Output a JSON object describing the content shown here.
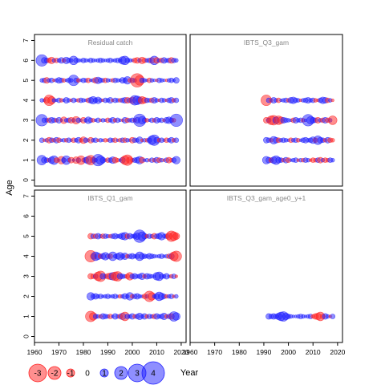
{
  "colors": {
    "negative": "#ff2020",
    "positive": "#2020ff",
    "panel_title": "#888888",
    "axis": "#000000"
  },
  "chart_data": {
    "type": "scatter",
    "subtype": "bubble-residual-panels",
    "xlabel": "Year",
    "ylabel": "Age",
    "xlim": [
      1960,
      2022
    ],
    "ylim": [
      -0.3,
      7.3
    ],
    "x_ticks": [
      1960,
      1970,
      1980,
      1990,
      2000,
      2010,
      2020
    ],
    "y_ticks": [
      0,
      1,
      2,
      3,
      4,
      5,
      6,
      7
    ],
    "legend": {
      "placement": "bottom-left",
      "values": [
        -3,
        -2,
        -1,
        0,
        1,
        2,
        3,
        4
      ],
      "labels": [
        "-3",
        "-2",
        "-1",
        "0",
        "1",
        "2",
        "3",
        "4"
      ]
    },
    "panels": [
      {
        "title": "Residual catch",
        "year_range": [
          1963,
          2018
        ],
        "ages": [
          1,
          2,
          3,
          4,
          5,
          6
        ],
        "residuals": {
          "1": [
            1.0,
            0.6,
            0.5,
            -0.4,
            0.7,
            0.9,
            -0.5,
            0.3,
            -0.8,
            0.5,
            0.9,
            0.4,
            -0.6,
            0.3,
            -0.7,
            0.5,
            -0.9,
            -0.4,
            0.6,
            0.8,
            -1.0,
            -0.6,
            0.4,
            1.2,
            0.9,
            0.6,
            0.3,
            -0.5,
            0.5,
            0.7,
            -0.6,
            -0.4,
            0.3,
            0.6,
            -0.9,
            -1.1,
            -0.7,
            -0.4,
            0.5,
            0.6,
            0.8,
            -0.6,
            0.3,
            0.4,
            -0.3,
            0.5,
            -0.4,
            0.6,
            -0.5,
            0.4,
            -0.3,
            0.5,
            -0.6,
            -0.4,
            0.5,
            0.8
          ],
          "2": [
            0.5,
            -0.3,
            0.4,
            -0.6,
            0.5,
            -0.4,
            0.6,
            -0.5,
            0.3,
            0.4,
            -0.4,
            0.5,
            0.3,
            -0.5,
            0.4,
            0.6,
            -0.4,
            -0.7,
            0.5,
            0.3,
            -0.6,
            0.4,
            0.5,
            -0.3,
            0.4,
            0.3,
            -0.4,
            -0.3,
            0.5,
            0.4,
            -0.5,
            0.3,
            -0.4,
            0.5,
            -0.5,
            0.4,
            0.3,
            -0.6,
            0.5,
            0.4,
            0.7,
            -0.3,
            0.4,
            -0.4,
            0.5,
            0.9,
            1.1,
            0.6,
            -0.4,
            0.5,
            0.3,
            -0.5,
            0.4,
            0.6,
            -0.4,
            0.5
          ],
          "3": [
            1.2,
            0.5,
            0.4,
            -0.5,
            0.6,
            0.5,
            -0.4,
            0.6,
            0.3,
            -0.7,
            0.4,
            0.5,
            -0.6,
            0.4,
            -0.8,
            0.5,
            0.3,
            -0.6,
            0.4,
            0.7,
            0.5,
            -0.4,
            0.3,
            0.5,
            -0.3,
            0.4,
            0.3,
            -0.5,
            0.4,
            0.6,
            -0.4,
            0.5,
            0.3,
            -0.3,
            0.6,
            -0.5,
            0.4,
            0.5,
            -0.4,
            0.6,
            1.3,
            0.8,
            0.5,
            -0.4,
            0.3,
            0.5,
            -0.4,
            0.6,
            0.4,
            0.5,
            -0.3,
            0.6,
            0.7,
            0.5,
            -0.4,
            1.3
          ],
          "4": [
            0.4,
            0.3,
            -0.6,
            -1.1,
            -0.8,
            0.4,
            0.3,
            0.5,
            -0.4,
            0.3,
            0.6,
            0.4,
            -0.3,
            0.5,
            0.3,
            -0.4,
            0.5,
            0.4,
            0.3,
            -0.5,
            0.6,
            0.8,
            0.5,
            0.7,
            0.4,
            -0.3,
            0.5,
            0.4,
            0.6,
            -0.3,
            0.5,
            0.4,
            -0.4,
            0.5,
            0.6,
            -0.6,
            0.5,
            -0.7,
            1.0,
            0.9,
            0.7,
            -0.8,
            -0.6,
            0.5,
            0.4,
            -0.5,
            0.6,
            0.4,
            -0.3,
            0.5,
            0.4,
            -0.3,
            0.5,
            0.6,
            -0.4,
            0.5
          ],
          "5": [
            0.4,
            0.5,
            -0.6,
            0.4,
            0.5,
            -0.3,
            0.4,
            0.6,
            0.5,
            -0.4,
            0.3,
            0.5,
            0.4,
            1.1,
            0.5,
            -0.4,
            0.3,
            0.5,
            0.4,
            -0.5,
            0.3,
            0.4,
            -0.6,
            0.7,
            0.5,
            0.4,
            -0.5,
            0.4,
            0.3,
            -0.4,
            0.5,
            0.4,
            0.3,
            0.6,
            0.5,
            0.8,
            -0.4,
            0.5,
            0.4,
            -1.4,
            -1.0,
            0.5,
            0.4,
            0.3,
            -0.5,
            0.4,
            0.3,
            -0.3,
            0.5,
            0.4,
            0.3,
            -0.3,
            0.4,
            0.5,
            0.3,
            0.6
          ],
          "6": [
            1.2,
            0.6,
            0.5,
            -0.5,
            -0.7,
            0.4,
            -0.5,
            0.4,
            0.6,
            -0.4,
            0.7,
            0.5,
            0.4,
            0.9,
            0.5,
            0.4,
            0.3,
            0.5,
            0.4,
            0.3,
            0.5,
            0.4,
            0.3,
            0.4,
            0.5,
            0.4,
            0.3,
            0.4,
            0.5,
            0.3,
            0.4,
            0.5,
            0.4,
            0.8,
            0.9,
            0.5,
            0.4,
            0.3,
            -0.5,
            -0.6,
            0.4,
            -0.7,
            -0.5,
            0.4,
            0.5,
            -0.6,
            0.9,
            -0.6,
            0.4,
            -0.5,
            0.6,
            0.4,
            0.5,
            -0.6,
            0.5,
            0.4
          ]
        }
      },
      {
        "title": "IBTS_Q3_gam",
        "year_range": [
          1991,
          2018
        ],
        "ages": [
          1,
          2,
          3,
          4
        ],
        "residuals": {
          "1": [
            0.8,
            0.6,
            -0.5,
            0.7,
            0.9,
            0.6,
            0.5,
            -0.4,
            0.6,
            -0.5,
            0.3,
            0.4,
            0.5,
            -0.3,
            0.4,
            -0.4,
            0.5,
            0.4,
            -0.3,
            -0.5,
            -0.4,
            0.5,
            -0.6,
            0.4,
            -0.5,
            -0.4,
            0.5,
            0.4
          ],
          "2": [
            0.6,
            0.5,
            -0.4,
            0.8,
            0.6,
            -0.5,
            0.4,
            0.5,
            0.4,
            0.3,
            -0.5,
            0.4,
            0.5,
            -0.4,
            0.3,
            0.5,
            0.6,
            0.4,
            0.5,
            0.7,
            -0.5,
            0.9,
            0.6,
            0.5,
            -0.4,
            0.6,
            -0.5,
            -0.4
          ],
          "3": [
            -0.6,
            0.5,
            -0.9,
            -1.0,
            0.7,
            -0.9,
            -0.7,
            0.6,
            0.5,
            0.4,
            0.3,
            -0.5,
            0.6,
            0.4,
            0.5,
            -0.4,
            0.3,
            1.2,
            0.8,
            0.6,
            0.5,
            -0.6,
            0.4,
            -0.5,
            0.6,
            -0.5,
            0.4,
            -0.9
          ],
          "4": [
            -1.1,
            0.5,
            -0.4,
            0.6,
            0.4,
            -0.5,
            0.3,
            0.4,
            0.5,
            -0.4,
            0.6,
            0.7,
            0.5,
            0.4,
            -0.3,
            0.4,
            0.5,
            0.6,
            0.4,
            0.5,
            -0.4,
            -0.3,
            0.5,
            0.7,
            0.6,
            -0.5,
            0.4,
            -0.3
          ]
        }
      },
      {
        "title": "IBTS_Q1_gam",
        "year_range": [
          1983,
          2018
        ],
        "ages": [
          1,
          2,
          3,
          4,
          5
        ],
        "residuals": {
          "1": [
            -1.1,
            -0.8,
            0.5,
            0.4,
            -0.4,
            0.6,
            0.5,
            0.4,
            -0.5,
            0.3,
            0.6,
            0.4,
            -0.5,
            0.7,
            -0.9,
            0.5,
            0.4,
            0.6,
            -0.4,
            0.5,
            0.7,
            0.4,
            0.6,
            -0.4,
            0.5,
            0.4,
            -0.5,
            0.6,
            0.4,
            0.5,
            0.7,
            -0.4,
            0.5,
            -0.6,
            1.0,
            0.8
          ],
          "2": [
            0.8,
            0.5,
            0.6,
            0.4,
            0.5,
            0.3,
            0.4,
            0.5,
            0.3,
            0.4,
            0.5,
            0.3,
            -0.4,
            0.4,
            0.6,
            0.4,
            0.8,
            -0.4,
            0.5,
            0.6,
            0.4,
            0.3,
            -0.5,
            0.4,
            -1.1,
            -0.8,
            0.4,
            0.6,
            0.9,
            0.7,
            0.5,
            -0.4,
            0.4,
            0.5,
            -0.3,
            0.4
          ],
          "3": [
            -0.6,
            -0.5,
            0.5,
            -0.9,
            -1.1,
            0.6,
            0.4,
            -0.6,
            -0.7,
            0.8,
            -0.9,
            -1.0,
            0.6,
            0.5,
            0.4,
            -0.5,
            -0.8,
            0.5,
            0.6,
            0.4,
            0.5,
            0.7,
            -0.4,
            0.6,
            0.5,
            0.4,
            0.3,
            0.8,
            0.9,
            0.5,
            0.4,
            0.6,
            0.3,
            -0.4,
            0.5,
            -0.3
          ],
          "4": [
            -1.2,
            -0.6,
            0.9,
            0.7,
            -0.5,
            0.6,
            0.8,
            0.5,
            -0.5,
            0.9,
            0.4,
            0.6,
            0.8,
            0.5,
            0.7,
            -0.4,
            0.5,
            0.6,
            0.4,
            0.5,
            0.9,
            0.6,
            0.5,
            0.4,
            0.6,
            0.5,
            0.4,
            0.3,
            0.4,
            0.5,
            0.3,
            0.4,
            -0.5,
            0.6,
            -0.9,
            -1.1
          ],
          "5": [
            -0.6,
            0.5,
            -0.5,
            0.6,
            0.4,
            -0.5,
            0.5,
            0.4,
            -0.4,
            0.5,
            0.6,
            0.4,
            0.5,
            0.7,
            0.8,
            -0.5,
            0.6,
            0.4,
            0.5,
            0.7,
            1.3,
            0.9,
            0.6,
            -0.4,
            0.5,
            0.4,
            -0.6,
            0.5,
            0.6,
            0.8,
            0.4,
            0.5,
            -0.7,
            -1.1,
            -0.9,
            -0.7
          ]
        }
      },
      {
        "title": "IBTS_Q3_gam_age0_y+1",
        "year_range": [
          1992,
          2018
        ],
        "ages": [
          1
        ],
        "residuals": {
          "1": [
            0.6,
            0.5,
            0.6,
            0.5,
            0.7,
            0.9,
            1.0,
            0.7,
            0.5,
            0.4,
            0.3,
            0.3,
            0.4,
            0.5,
            0.4,
            0.3,
            0.4,
            0.5,
            -0.4,
            -0.6,
            -0.7,
            -0.9,
            -0.5,
            0.6,
            0.4,
            -0.3,
            0.5
          ]
        }
      }
    ]
  }
}
